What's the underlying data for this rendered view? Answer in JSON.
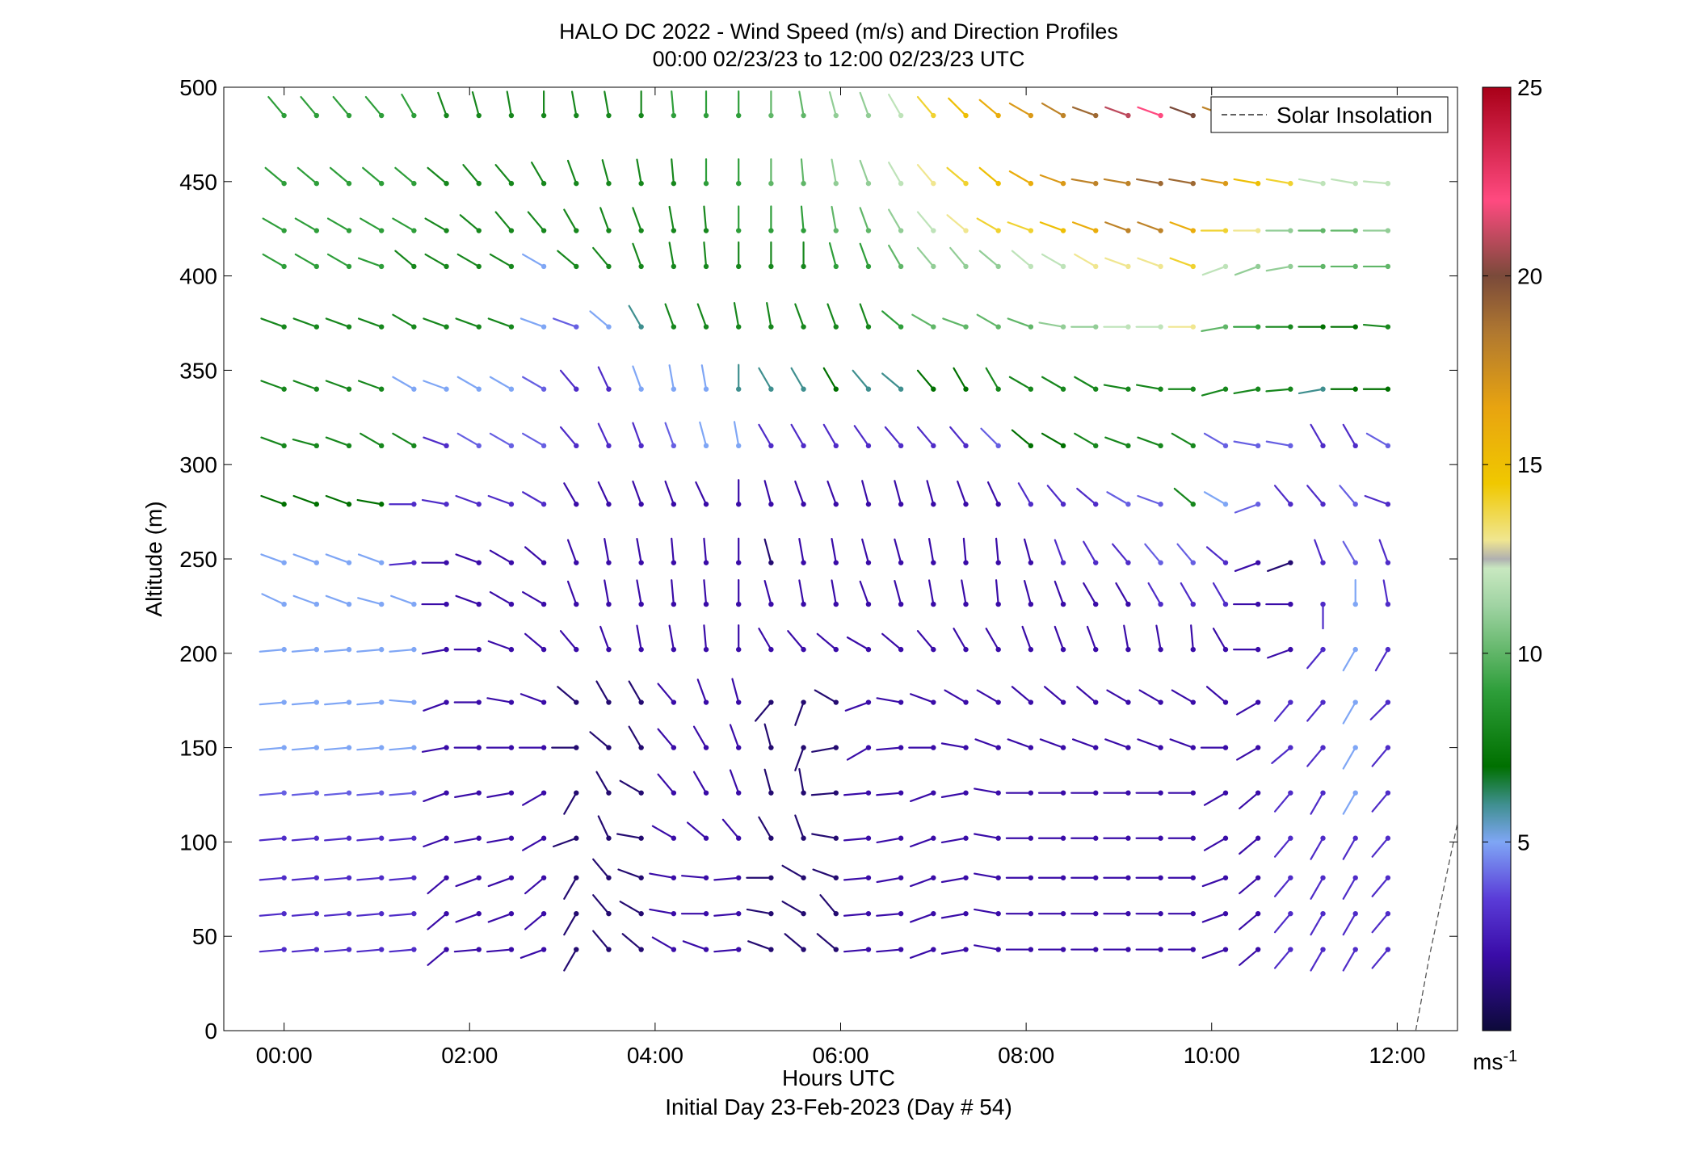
{
  "chart_data": {
    "type": "wind-barb-profile",
    "title": "HALO DC 2022 - Wind Speed (m/s) and Direction Profiles",
    "subtitle": "00:00 02/23/23 to 12:00 02/23/23  UTC",
    "xlabel": "Hours UTC",
    "xlabel2": "Initial Day 23-Feb-2023 (Day # 54)",
    "ylabel": "Altitude (m)",
    "xlim": [
      -0.65,
      12.65
    ],
    "ylim": [
      0,
      500
    ],
    "xticks": [
      0,
      2,
      4,
      6,
      8,
      10,
      12
    ],
    "xtick_labels": [
      "00:00",
      "02:00",
      "04:00",
      "06:00",
      "08:00",
      "10:00",
      "12:00"
    ],
    "yticks": [
      0,
      50,
      100,
      150,
      200,
      250,
      300,
      350,
      400,
      450,
      500
    ],
    "ytick_labels": [
      "0",
      "50",
      "100",
      "150",
      "200",
      "250",
      "300",
      "350",
      "400",
      "450",
      "500"
    ],
    "legend": {
      "entries": [
        "Solar Insolation"
      ],
      "placement": "top-right"
    },
    "colorbar": {
      "range": [
        0,
        25
      ],
      "ticks": [
        5,
        10,
        15,
        20,
        25
      ],
      "tick_labels": [
        "5",
        "10",
        "15",
        "20",
        "25"
      ],
      "unit": "ms",
      "unit_exp": "-1"
    },
    "times_h": [
      0,
      0.35,
      0.7,
      1.05,
      1.4,
      1.75,
      2.1,
      2.45,
      2.8,
      3.15,
      3.5,
      3.85,
      4.2,
      4.55,
      4.9,
      5.25,
      5.6,
      5.95,
      6.3,
      6.65,
      7.0,
      7.35,
      7.7,
      8.05,
      8.4,
      8.75,
      9.1,
      9.45,
      9.8,
      10.15,
      10.5,
      10.85,
      11.2,
      11.55,
      11.9
    ],
    "altitudes_m": [
      43,
      62,
      81,
      102,
      126,
      150,
      174,
      202,
      226,
      248,
      279,
      310,
      340,
      373,
      405,
      424,
      449,
      485
    ],
    "solar_insolation": {
      "x": [
        12.2,
        12.35,
        12.5,
        12.65
      ],
      "y": [
        0,
        40,
        75,
        110
      ]
    },
    "wind_speed_rows_ms": [
      [
        3,
        3,
        3,
        3,
        3,
        2,
        2,
        2,
        2,
        1,
        1,
        1,
        2,
        2,
        2,
        1,
        1,
        1,
        2,
        2,
        2,
        2,
        2,
        2,
        2,
        2,
        2,
        2,
        2,
        2,
        2,
        3,
        3,
        3,
        3
      ],
      [
        3,
        3,
        3,
        3,
        3,
        2,
        2,
        2,
        2,
        1,
        1,
        1,
        2,
        2,
        2,
        1,
        1,
        1,
        2,
        2,
        2,
        2,
        2,
        2,
        2,
        2,
        2,
        2,
        2,
        2,
        2,
        3,
        3,
        3,
        3
      ],
      [
        3,
        3,
        3,
        3,
        3,
        2,
        2,
        2,
        2,
        1,
        1,
        1,
        2,
        2,
        2,
        1,
        1,
        1,
        2,
        2,
        2,
        2,
        2,
        2,
        2,
        2,
        2,
        2,
        2,
        2,
        2,
        3,
        3,
        3,
        3
      ],
      [
        3,
        3,
        3,
        3,
        3,
        2,
        2,
        2,
        2,
        1,
        1,
        1,
        2,
        2,
        2,
        1,
        1,
        1,
        2,
        2,
        2,
        2,
        2,
        2,
        2,
        2,
        2,
        2,
        2,
        2,
        2,
        3,
        3,
        3,
        3
      ],
      [
        4,
        4,
        4,
        4,
        4,
        2,
        2,
        2,
        2,
        1,
        1,
        1,
        2,
        2,
        2,
        1,
        1,
        1,
        2,
        2,
        2,
        2,
        2,
        2,
        2,
        2,
        2,
        2,
        2,
        2,
        2,
        3,
        3,
        5,
        3
      ],
      [
        5,
        5,
        5,
        5,
        5,
        2,
        2,
        2,
        2,
        1,
        1,
        1,
        2,
        2,
        2,
        1,
        1,
        1,
        2,
        2,
        2,
        2,
        2,
        2,
        2,
        2,
        2,
        2,
        2,
        2,
        2,
        3,
        3,
        5,
        3
      ],
      [
        5,
        5,
        5,
        5,
        5,
        2,
        2,
        2,
        2,
        1,
        1,
        1,
        2,
        2,
        2,
        1,
        1,
        1,
        2,
        2,
        2,
        2,
        2,
        2,
        2,
        2,
        2,
        2,
        2,
        2,
        2,
        3,
        3,
        5,
        3
      ],
      [
        5,
        5,
        5,
        5,
        5,
        2,
        2,
        2,
        2,
        2,
        2,
        2,
        2,
        2,
        2,
        2,
        2,
        2,
        2,
        2,
        2,
        2,
        2,
        2,
        2,
        2,
        2,
        2,
        2,
        2,
        2,
        2,
        3,
        5,
        3
      ],
      [
        5,
        5,
        5,
        5,
        5,
        2,
        2,
        2,
        2,
        2,
        2,
        2,
        2,
        2,
        2,
        2,
        2,
        2,
        2,
        2,
        2,
        2,
        2,
        2,
        2,
        2,
        2,
        3,
        3,
        3,
        2,
        2,
        3,
        5,
        3
      ],
      [
        5,
        5,
        5,
        5,
        3,
        2,
        2,
        2,
        2,
        2,
        2,
        2,
        2,
        2,
        2,
        1,
        2,
        2,
        2,
        2,
        2,
        2,
        2,
        2,
        3,
        3,
        3,
        4,
        4,
        3,
        2,
        1,
        3,
        4,
        3
      ],
      [
        7,
        7,
        7,
        7,
        3,
        3,
        3,
        3,
        3,
        2,
        2,
        2,
        2,
        2,
        2,
        2,
        2,
        2,
        2,
        2,
        2,
        2,
        2,
        3,
        3,
        3,
        4,
        4,
        8,
        5,
        4,
        3,
        3,
        4,
        3
      ],
      [
        8,
        8,
        8,
        8,
        8,
        3,
        4,
        4,
        4,
        3,
        3,
        3,
        4,
        5,
        5,
        3,
        3,
        3,
        3,
        3,
        3,
        3,
        4,
        7,
        7,
        8,
        8,
        8,
        8,
        4,
        4,
        4,
        3,
        3,
        4
      ],
      [
        8,
        8,
        8,
        8,
        5,
        5,
        5,
        5,
        4,
        3,
        3,
        5,
        5,
        5,
        6,
        6,
        6,
        7,
        6,
        6,
        7,
        7,
        8,
        8,
        8,
        8,
        8,
        8,
        8,
        8,
        8,
        8,
        6,
        7,
        7
      ],
      [
        8,
        8,
        8,
        8,
        8,
        8,
        8,
        8,
        5,
        4,
        5,
        6,
        8,
        8,
        8,
        8,
        8,
        8,
        8,
        9,
        10,
        10,
        10,
        10,
        11,
        11,
        12,
        12,
        13,
        10,
        9,
        8,
        7,
        7,
        8
      ],
      [
        9,
        9,
        9,
        9,
        8,
        8,
        8,
        8,
        5,
        8,
        8,
        8,
        8,
        8,
        8,
        8,
        8,
        9,
        9,
        10,
        11,
        11,
        11,
        12,
        12,
        13,
        13,
        13,
        14,
        12,
        11,
        11,
        10,
        10,
        10
      ],
      [
        9,
        9,
        9,
        9,
        9,
        8,
        8,
        8,
        8,
        8,
        8,
        8,
        8,
        8,
        9,
        9,
        9,
        10,
        10,
        11,
        12,
        13,
        14,
        14,
        15,
        16,
        18,
        18,
        16,
        14,
        13,
        11,
        10,
        10,
        11
      ],
      [
        9,
        9,
        9,
        9,
        9,
        8,
        8,
        8,
        8,
        8,
        8,
        8,
        8,
        9,
        9,
        10,
        10,
        11,
        11,
        12,
        13,
        14,
        15,
        16,
        17,
        18,
        18,
        19,
        19,
        17,
        15,
        14,
        12,
        12,
        12
      ],
      [
        9,
        9,
        9,
        9,
        9,
        8,
        8,
        8,
        8,
        8,
        8,
        8,
        9,
        9,
        9,
        10,
        10,
        11,
        11,
        12,
        14,
        15,
        16,
        17,
        18,
        19,
        21,
        22,
        20,
        18,
        16,
        15,
        14,
        13,
        13
      ]
    ],
    "wind_direction_rows_deg": [
      [
        265,
        265,
        265,
        265,
        265,
        230,
        265,
        265,
        250,
        210,
        320,
        310,
        300,
        290,
        265,
        290,
        310,
        310,
        265,
        265,
        250,
        260,
        280,
        270,
        270,
        270,
        270,
        270,
        270,
        250,
        230,
        220,
        210,
        210,
        220
      ],
      [
        265,
        265,
        265,
        265,
        265,
        230,
        250,
        250,
        230,
        210,
        320,
        300,
        280,
        270,
        265,
        280,
        300,
        320,
        265,
        265,
        250,
        260,
        280,
        270,
        270,
        270,
        270,
        270,
        270,
        250,
        230,
        220,
        210,
        210,
        220
      ],
      [
        265,
        265,
        265,
        265,
        265,
        230,
        250,
        250,
        230,
        210,
        320,
        290,
        280,
        275,
        265,
        270,
        300,
        290,
        265,
        260,
        250,
        260,
        280,
        270,
        270,
        270,
        270,
        270,
        270,
        250,
        230,
        220,
        210,
        210,
        220
      ],
      [
        265,
        265,
        265,
        265,
        265,
        250,
        260,
        260,
        240,
        250,
        335,
        280,
        300,
        310,
        320,
        330,
        340,
        280,
        265,
        260,
        250,
        260,
        280,
        270,
        270,
        270,
        270,
        270,
        270,
        240,
        230,
        220,
        210,
        210,
        220
      ],
      [
        265,
        265,
        265,
        265,
        265,
        250,
        260,
        260,
        240,
        210,
        330,
        300,
        320,
        330,
        340,
        345,
        350,
        265,
        265,
        265,
        250,
        260,
        280,
        270,
        270,
        270,
        270,
        270,
        270,
        240,
        230,
        220,
        210,
        210,
        220
      ],
      [
        265,
        265,
        265,
        265,
        265,
        260,
        270,
        270,
        270,
        270,
        310,
        330,
        320,
        330,
        340,
        345,
        200,
        260,
        240,
        265,
        270,
        280,
        290,
        290,
        290,
        290,
        290,
        290,
        290,
        270,
        240,
        230,
        220,
        210,
        220
      ],
      [
        265,
        265,
        265,
        265,
        275,
        250,
        270,
        280,
        290,
        310,
        330,
        330,
        320,
        340,
        345,
        220,
        200,
        300,
        250,
        280,
        290,
        300,
        300,
        310,
        310,
        310,
        300,
        300,
        300,
        310,
        240,
        220,
        220,
        210,
        225
      ],
      [
        265,
        265,
        265,
        265,
        265,
        260,
        270,
        290,
        310,
        320,
        340,
        350,
        350,
        355,
        360,
        330,
        320,
        310,
        300,
        310,
        320,
        330,
        330,
        340,
        340,
        340,
        350,
        350,
        355,
        330,
        270,
        250,
        220,
        210,
        210
      ],
      [
        295,
        290,
        290,
        285,
        290,
        270,
        290,
        300,
        300,
        340,
        350,
        350,
        355,
        355,
        360,
        345,
        350,
        350,
        340,
        345,
        350,
        350,
        355,
        345,
        340,
        330,
        330,
        330,
        330,
        330,
        270,
        270,
        180,
        360,
        350
      ],
      [
        290,
        290,
        290,
        290,
        265,
        270,
        290,
        300,
        310,
        340,
        350,
        350,
        355,
        355,
        360,
        345,
        350,
        350,
        345,
        345,
        350,
        355,
        355,
        345,
        340,
        330,
        320,
        320,
        320,
        310,
        250,
        250,
        340,
        330,
        340
      ],
      [
        290,
        290,
        290,
        280,
        270,
        280,
        290,
        290,
        300,
        330,
        335,
        340,
        340,
        335,
        360,
        345,
        340,
        340,
        345,
        345,
        345,
        340,
        335,
        330,
        320,
        310,
        300,
        290,
        310,
        300,
        250,
        320,
        320,
        320,
        290
      ],
      [
        290,
        285,
        290,
        300,
        300,
        290,
        300,
        300,
        300,
        320,
        335,
        340,
        340,
        345,
        350,
        330,
        330,
        330,
        325,
        320,
        320,
        320,
        315,
        310,
        300,
        300,
        290,
        290,
        300,
        300,
        280,
        280,
        330,
        330,
        300
      ],
      [
        290,
        290,
        290,
        290,
        300,
        290,
        300,
        300,
        300,
        320,
        335,
        340,
        350,
        350,
        360,
        330,
        330,
        330,
        320,
        310,
        320,
        330,
        330,
        300,
        300,
        300,
        280,
        280,
        270,
        255,
        260,
        265,
        260,
        270,
        270
      ],
      [
        290,
        290,
        290,
        290,
        300,
        290,
        290,
        290,
        290,
        290,
        310,
        330,
        340,
        340,
        350,
        350,
        340,
        340,
        340,
        310,
        300,
        290,
        300,
        290,
        280,
        270,
        270,
        270,
        270,
        260,
        270,
        270,
        270,
        270,
        275
      ],
      [
        300,
        300,
        300,
        290,
        310,
        300,
        300,
        300,
        300,
        310,
        320,
        340,
        350,
        355,
        360,
        360,
        360,
        345,
        340,
        330,
        320,
        320,
        310,
        310,
        300,
        300,
        290,
        290,
        290,
        250,
        250,
        260,
        270,
        270,
        270
      ],
      [
        300,
        300,
        300,
        300,
        300,
        300,
        310,
        320,
        320,
        330,
        340,
        340,
        350,
        355,
        360,
        360,
        355,
        350,
        340,
        330,
        320,
        310,
        300,
        290,
        290,
        290,
        290,
        290,
        290,
        270,
        270,
        270,
        270,
        270,
        270
      ],
      [
        310,
        310,
        310,
        310,
        310,
        310,
        320,
        320,
        330,
        340,
        345,
        350,
        355,
        360,
        360,
        360,
        355,
        350,
        340,
        330,
        320,
        310,
        310,
        300,
        290,
        280,
        280,
        280,
        280,
        280,
        280,
        280,
        280,
        280,
        275
      ],
      [
        320,
        320,
        320,
        320,
        330,
        340,
        345,
        350,
        360,
        350,
        350,
        360,
        355,
        360,
        360,
        360,
        350,
        345,
        340,
        330,
        320,
        315,
        310,
        300,
        300,
        290,
        290,
        290,
        290,
        290,
        280,
        280,
        280,
        280,
        280
      ]
    ]
  }
}
